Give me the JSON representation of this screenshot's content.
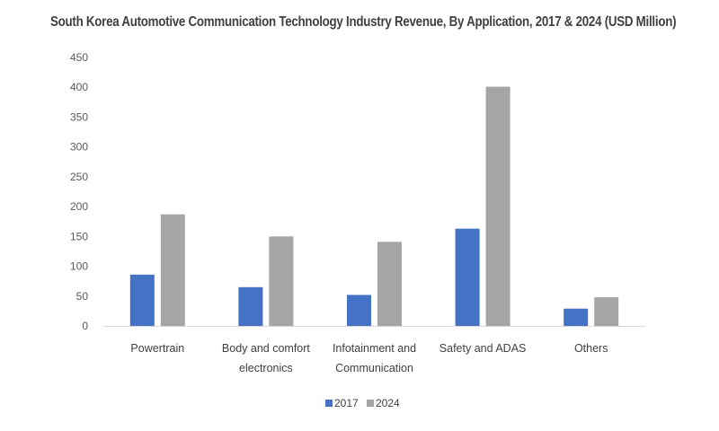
{
  "chart_data": {
    "type": "bar",
    "title": "South Korea Automotive Communication Technology Industry Revenue, By Application, 2017 & 2024 (USD Million)",
    "categories": [
      [
        "Powertrain"
      ],
      [
        "Body and comfort",
        "electronics"
      ],
      [
        "Infotainment and",
        "Communication"
      ],
      [
        "Safety and ADAS"
      ],
      [
        "Others"
      ]
    ],
    "series": [
      {
        "name": "2017",
        "color": "#4472C4",
        "values": [
          86,
          65,
          52,
          163,
          29
        ]
      },
      {
        "name": "2024",
        "color": "#A5A5A5",
        "values": [
          187,
          150,
          141,
          401,
          48
        ]
      }
    ],
    "ylim": [
      0,
      450
    ],
    "yticks": [
      0,
      50,
      100,
      150,
      200,
      250,
      300,
      350,
      400,
      450
    ],
    "grid": false,
    "legend": "bottom-center"
  }
}
